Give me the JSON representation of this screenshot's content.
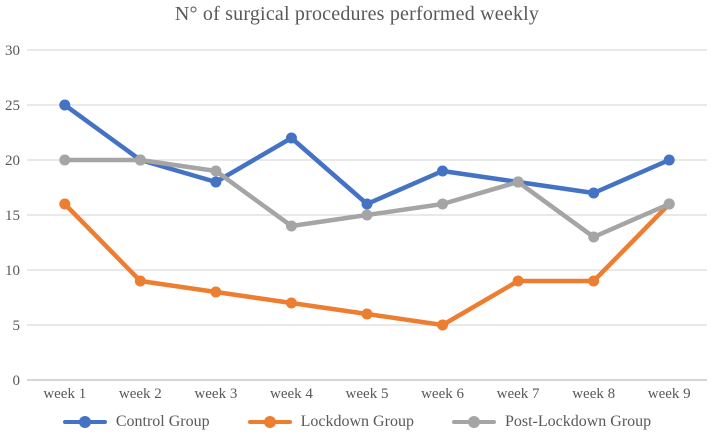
{
  "colors": {
    "control": "#4472C4",
    "lockdown": "#ED7D31",
    "post_lockdown": "#A5A5A5",
    "gridline": "#DCDCDC",
    "axis_line": "#D6D6D6",
    "text": "#595959",
    "background": "#FFFFFF"
  },
  "chart_data": {
    "type": "line",
    "title": "N° of surgical procedures performed weekly",
    "categories": [
      "week 1",
      "week 2",
      "week 3",
      "week 4",
      "week 5",
      "week 6",
      "week 7",
      "week 8",
      "week 9"
    ],
    "series": [
      {
        "name": "Control Group",
        "color": "#4472C4",
        "values": [
          25,
          20,
          18,
          22,
          16,
          19,
          18,
          17,
          20
        ]
      },
      {
        "name": "Lockdown Group",
        "color": "#ED7D31",
        "values": [
          16,
          9,
          8,
          7,
          6,
          5,
          9,
          9,
          16
        ]
      },
      {
        "name": "Post-Lockdown Group",
        "color": "#A5A5A5",
        "values": [
          20,
          20,
          19,
          14,
          15,
          16,
          18,
          13,
          16
        ]
      }
    ],
    "xlabel": "",
    "ylabel": "",
    "ylim": [
      0,
      30
    ],
    "y_ticks": [
      0,
      5,
      10,
      15,
      20,
      25,
      30
    ],
    "grid": true,
    "legend_position": "bottom",
    "marker": "circle"
  }
}
